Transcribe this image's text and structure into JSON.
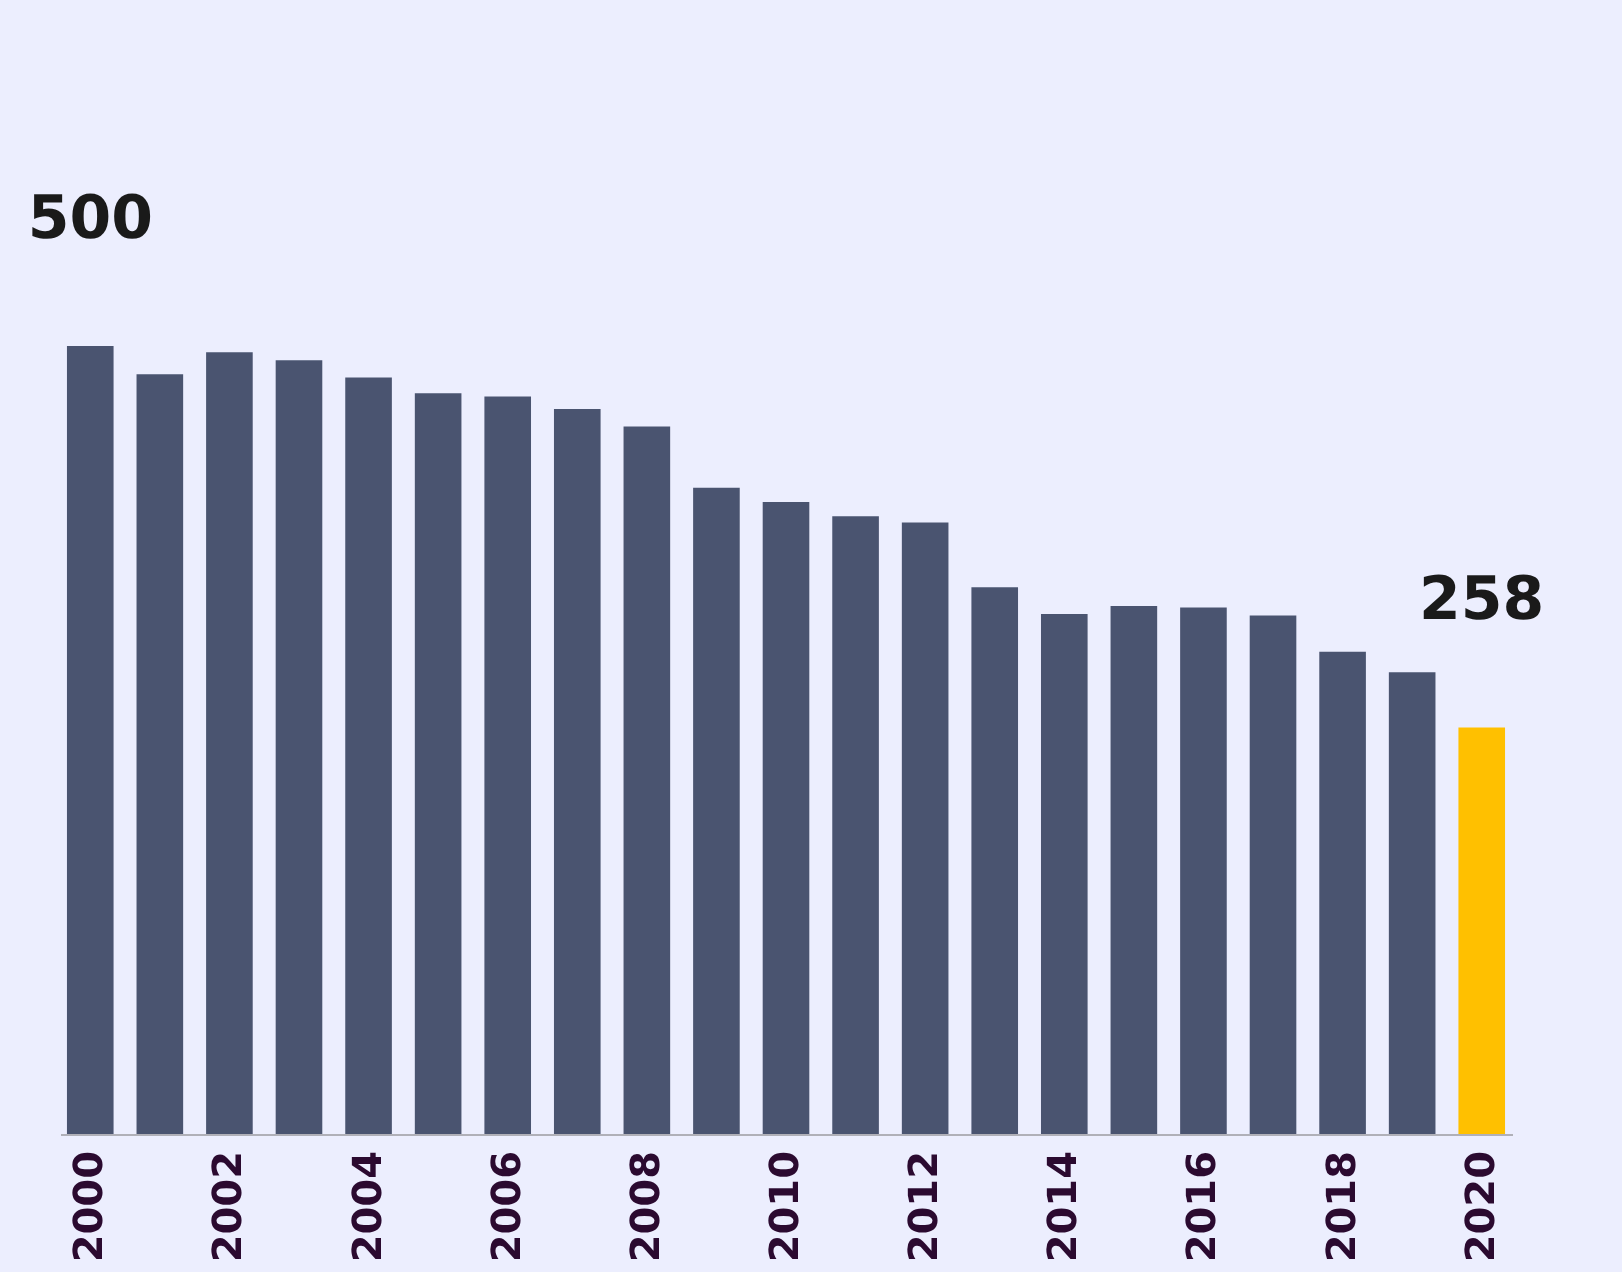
{
  "chart_data": {
    "type": "bar",
    "categories": [
      "2000",
      null,
      "2002",
      null,
      "2004",
      null,
      "2006",
      null,
      "2008",
      null,
      "2010",
      null,
      "2012",
      null,
      "2014",
      null,
      "2016",
      null,
      "2018",
      null,
      "2020"
    ],
    "values": [
      500,
      482,
      496,
      491,
      480,
      470,
      468,
      460,
      449,
      410,
      401,
      392,
      388,
      347,
      330,
      335,
      334,
      329,
      306,
      293,
      258
    ],
    "colors": [
      "#4a5470",
      "#4a5470",
      "#4a5470",
      "#4a5470",
      "#4a5470",
      "#4a5470",
      "#4a5470",
      "#4a5470",
      "#4a5470",
      "#4a5470",
      "#4a5470",
      "#4a5470",
      "#4a5470",
      "#4a5470",
      "#4a5470",
      "#4a5470",
      "#4a5470",
      "#4a5470",
      "#4a5470",
      "#4a5470",
      "#ffc000"
    ],
    "value_labels": [
      "500",
      null,
      null,
      null,
      null,
      null,
      null,
      null,
      null,
      null,
      null,
      null,
      null,
      null,
      null,
      null,
      null,
      null,
      null,
      null,
      "258"
    ],
    "tick_labels": "x",
    "grid": false
  }
}
